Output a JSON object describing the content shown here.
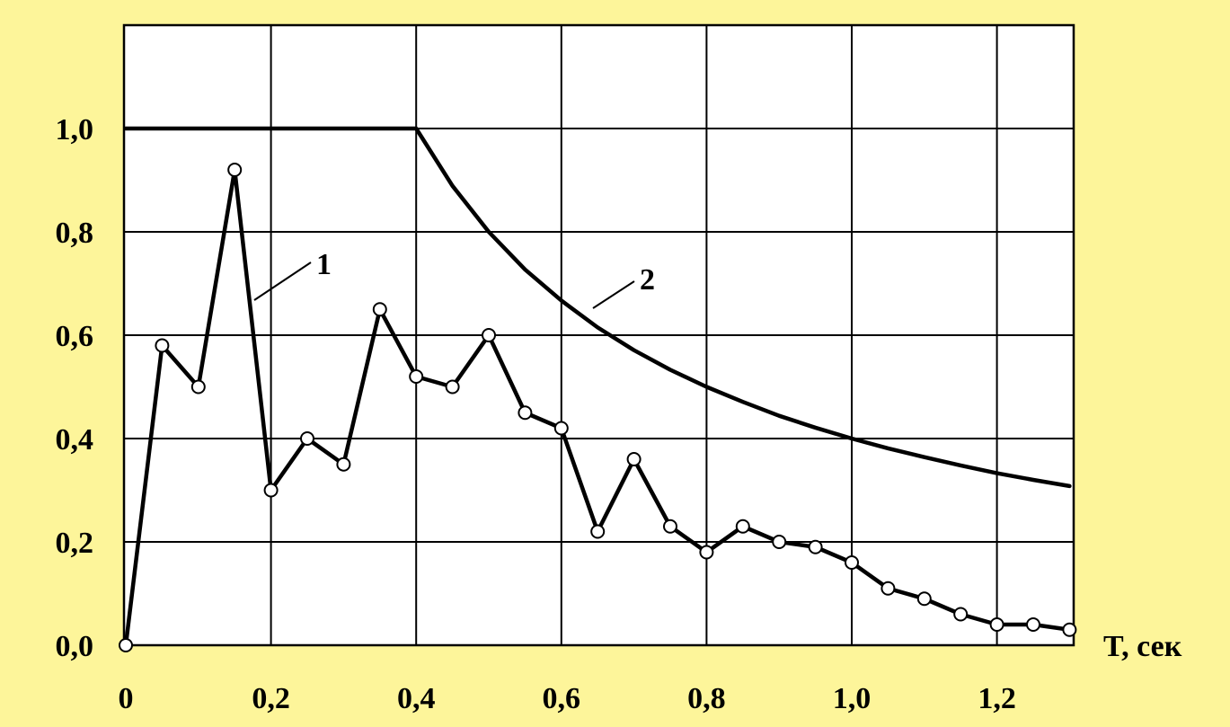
{
  "chart_data": {
    "type": "line",
    "title": "",
    "xlabel": "T, сек",
    "ylabel": "",
    "xlim": [
      0,
      1.3
    ],
    "ylim": [
      0,
      1.05
    ],
    "grid": true,
    "x_ticks": [
      {
        "value": 0,
        "label": "0"
      },
      {
        "value": 0.2,
        "label": "0,2"
      },
      {
        "value": 0.4,
        "label": "0,4"
      },
      {
        "value": 0.6,
        "label": "0,6"
      },
      {
        "value": 0.8,
        "label": "0,8"
      },
      {
        "value": 1.0,
        "label": "1,0"
      },
      {
        "value": 1.2,
        "label": "1,2"
      }
    ],
    "y_ticks": [
      {
        "value": 0,
        "label": "0,0"
      },
      {
        "value": 0.2,
        "label": "0,2"
      },
      {
        "value": 0.4,
        "label": "0,4"
      },
      {
        "value": 0.6,
        "label": "0,6"
      },
      {
        "value": 0.8,
        "label": "0,8"
      },
      {
        "value": 1.0,
        "label": "1,0"
      }
    ],
    "series": [
      {
        "label": "1",
        "markers": true,
        "x": [
          0.0,
          0.05,
          0.1,
          0.15,
          0.2,
          0.25,
          0.3,
          0.35,
          0.4,
          0.45,
          0.5,
          0.55,
          0.6,
          0.65,
          0.7,
          0.75,
          0.8,
          0.85,
          0.9,
          0.95,
          1.0,
          1.05,
          1.1,
          1.15,
          1.2,
          1.25,
          1.3
        ],
        "y": [
          0.0,
          0.58,
          0.5,
          0.92,
          0.3,
          0.4,
          0.35,
          0.65,
          0.52,
          0.5,
          0.6,
          0.45,
          0.42,
          0.22,
          0.36,
          0.23,
          0.18,
          0.23,
          0.2,
          0.19,
          0.16,
          0.11,
          0.09,
          0.06,
          0.04,
          0.04,
          0.03
        ]
      },
      {
        "label": "2",
        "markers": false,
        "x": [
          0.0,
          0.4,
          0.45,
          0.5,
          0.55,
          0.6,
          0.65,
          0.7,
          0.75,
          0.8,
          0.85,
          0.9,
          0.95,
          1.0,
          1.05,
          1.1,
          1.15,
          1.2,
          1.25,
          1.3
        ],
        "y": [
          1.0,
          1.0,
          0.889,
          0.8,
          0.727,
          0.667,
          0.615,
          0.571,
          0.533,
          0.5,
          0.471,
          0.444,
          0.421,
          0.4,
          0.381,
          0.364,
          0.348,
          0.333,
          0.32,
          0.308
        ]
      }
    ]
  }
}
